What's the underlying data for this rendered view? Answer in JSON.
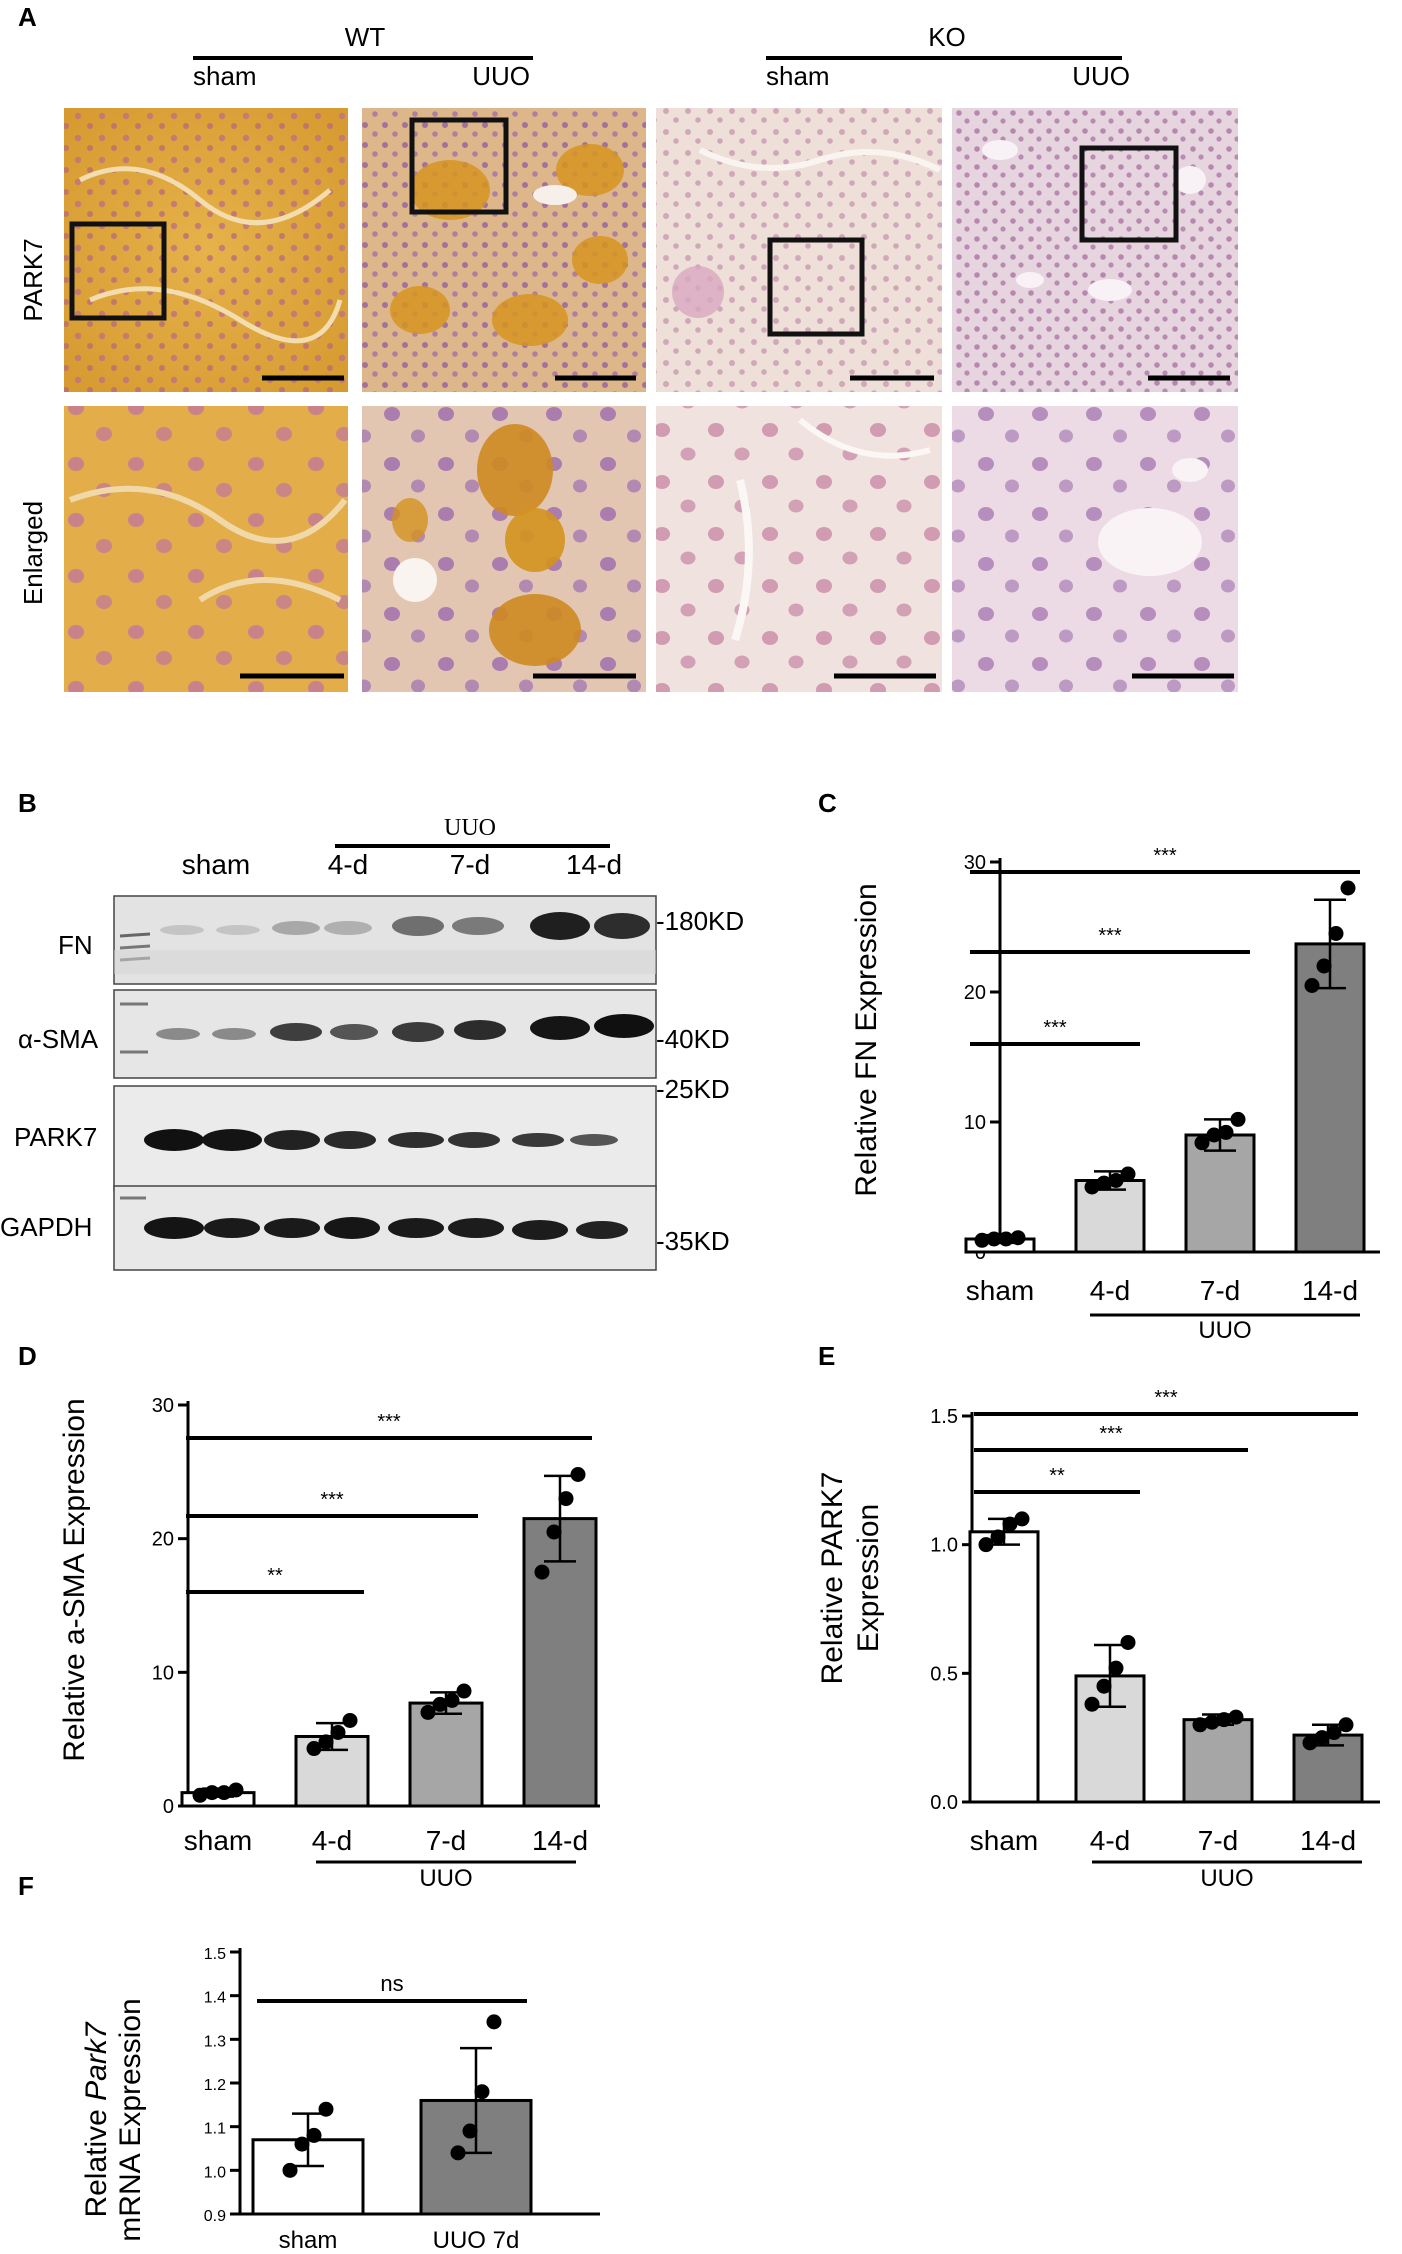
{
  "panel_a": {
    "label": "A",
    "groups": [
      {
        "name": "WT",
        "sub": [
          "sham",
          "UUO"
        ]
      },
      {
        "name": "KO",
        "sub": [
          "sham",
          "UUO"
        ]
      }
    ],
    "row_labels": [
      "PARK7",
      "Enlarged"
    ]
  },
  "panel_b": {
    "label": "B",
    "group_label": "UUO",
    "lanes": [
      "sham",
      "4-d",
      "7-d",
      "14-d"
    ],
    "bands": [
      "FN",
      "α-SMA",
      "PARK7",
      "GAPDH"
    ],
    "markers": [
      "-180KD",
      "-40KD",
      "-25KD",
      "-35KD"
    ]
  },
  "chart_data": [
    {
      "panel": "C",
      "type": "bar",
      "categories": [
        "sham",
        "4-d",
        "7-d",
        "14-d"
      ],
      "group_label": "UUO",
      "values": [
        1.0,
        5.5,
        9.0,
        23.7
      ],
      "errors": [
        0.3,
        0.7,
        1.2,
        3.4
      ],
      "points": [
        [
          0.9,
          1.0,
          1.0,
          1.1
        ],
        [
          5.0,
          5.3,
          5.5,
          6.0
        ],
        [
          8.4,
          9.0,
          9.2,
          10.2
        ],
        [
          20.5,
          22.0,
          24.5,
          28.0
        ]
      ],
      "ylabel": "Relative FN Expression",
      "ylim": [
        0,
        30
      ],
      "yticks": [
        0,
        10,
        20,
        30
      ],
      "significance": [
        {
          "from": 0,
          "to": 1,
          "label": "***"
        },
        {
          "from": 0,
          "to": 2,
          "label": "***"
        },
        {
          "from": 0,
          "to": 3,
          "label": "***"
        }
      ],
      "colors": [
        "#ffffff",
        "#d9d9d9",
        "#a6a6a6",
        "#7f7f7f"
      ]
    },
    {
      "panel": "D",
      "type": "bar",
      "categories": [
        "sham",
        "4-d",
        "7-d",
        "14-d"
      ],
      "group_label": "UUO",
      "values": [
        1.0,
        5.2,
        7.7,
        21.5
      ],
      "errors": [
        0.3,
        1.0,
        0.8,
        3.2
      ],
      "points": [
        [
          0.8,
          1.0,
          1.0,
          1.2
        ],
        [
          4.3,
          4.8,
          5.5,
          6.4
        ],
        [
          7.0,
          7.6,
          7.9,
          8.6
        ],
        [
          17.5,
          20.5,
          23.0,
          24.8
        ]
      ],
      "ylabel": "Relative a-SMA Expression",
      "ylim": [
        0,
        30
      ],
      "yticks": [
        0,
        10,
        20,
        30
      ],
      "significance": [
        {
          "from": 0,
          "to": 1,
          "label": "**"
        },
        {
          "from": 0,
          "to": 2,
          "label": "***"
        },
        {
          "from": 0,
          "to": 3,
          "label": "***"
        }
      ],
      "colors": [
        "#ffffff",
        "#d9d9d9",
        "#a6a6a6",
        "#7f7f7f"
      ]
    },
    {
      "panel": "E",
      "type": "bar",
      "categories": [
        "sham",
        "4-d",
        "7-d",
        "14-d"
      ],
      "group_label": "UUO",
      "values": [
        1.05,
        0.49,
        0.32,
        0.26
      ],
      "errors": [
        0.05,
        0.12,
        0.02,
        0.04
      ],
      "points": [
        [
          1.0,
          1.03,
          1.08,
          1.1
        ],
        [
          0.38,
          0.45,
          0.52,
          0.62
        ],
        [
          0.3,
          0.31,
          0.32,
          0.33
        ],
        [
          0.23,
          0.25,
          0.27,
          0.3
        ]
      ],
      "ylabel": "Relative PARK7 Expression",
      "ylim": [
        0,
        1.5
      ],
      "yticks": [
        "0.0",
        "0.5",
        "1.0",
        "1.5"
      ],
      "significance": [
        {
          "from": 0,
          "to": 1,
          "label": "**"
        },
        {
          "from": 0,
          "to": 2,
          "label": "***"
        },
        {
          "from": 0,
          "to": 3,
          "label": "***"
        }
      ],
      "colors": [
        "#ffffff",
        "#d9d9d9",
        "#a6a6a6",
        "#7f7f7f"
      ]
    },
    {
      "panel": "F",
      "type": "bar",
      "categories": [
        "sham",
        "UUO 7d"
      ],
      "values": [
        1.07,
        1.16
      ],
      "errors": [
        0.06,
        0.12
      ],
      "points": [
        [
          1.0,
          1.06,
          1.08,
          1.14
        ],
        [
          1.04,
          1.09,
          1.18,
          1.34
        ]
      ],
      "ylabel": "Relative Park7 mRNA Expression",
      "ylim": [
        0.9,
        1.5
      ],
      "yticks": [
        "0.9",
        "1.0",
        "1.1",
        "1.2",
        "1.3",
        "1.4",
        "1.5"
      ],
      "significance": [
        {
          "from": 0,
          "to": 1,
          "label": "ns"
        }
      ],
      "colors": [
        "#ffffff",
        "#7f7f7f"
      ]
    }
  ],
  "labels": {
    "C": "C",
    "D": "D",
    "E": "E",
    "F": "F"
  },
  "ylabel_parts": {
    "E1": "Relative PARK7",
    "E2": "Expression",
    "F1a": "Relative ",
    "F1b": "Park7",
    "F2": "mRNA Expression"
  }
}
